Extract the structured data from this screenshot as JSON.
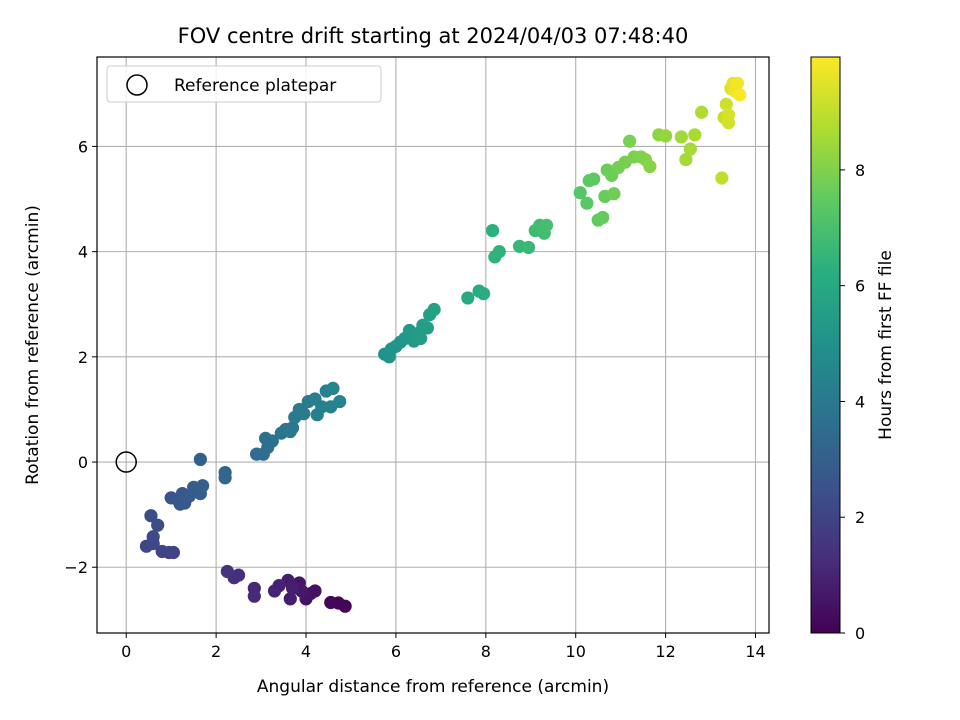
{
  "chart_data": {
    "type": "scatter",
    "title": "FOV centre drift starting at 2024/04/03 07:48:40",
    "xlabel": "Angular distance from reference (arcmin)",
    "ylabel": "Rotation from reference (arcmin)",
    "xlim": [
      -0.65,
      14.3
    ],
    "ylim": [
      -3.25,
      7.7
    ],
    "xticks": [
      0,
      2,
      4,
      6,
      8,
      10,
      12,
      14
    ],
    "yticks": [
      -2,
      0,
      2,
      4,
      6
    ],
    "grid": true,
    "colormap": "viridis",
    "colorbar": {
      "label": "Hours from first FF file",
      "range": [
        0,
        9.95
      ],
      "ticks": [
        0,
        2,
        4,
        6,
        8
      ]
    },
    "legend": {
      "placement": "top-left",
      "entries": [
        "Reference platepar"
      ]
    },
    "reference_point": {
      "x": 0,
      "y": 0
    },
    "points": [
      {
        "x": 4.87,
        "y": -2.74,
        "t": 0.05
      },
      {
        "x": 4.72,
        "y": -2.68,
        "t": 0.1
      },
      {
        "x": 4.55,
        "y": -2.67,
        "t": 0.2
      },
      {
        "x": 4.1,
        "y": -2.5,
        "t": 0.4
      },
      {
        "x": 4.2,
        "y": -2.45,
        "t": 0.45
      },
      {
        "x": 4.0,
        "y": -2.6,
        "t": 0.5
      },
      {
        "x": 3.85,
        "y": -2.3,
        "t": 0.6
      },
      {
        "x": 3.9,
        "y": -2.45,
        "t": 0.65
      },
      {
        "x": 3.6,
        "y": -2.25,
        "t": 0.75
      },
      {
        "x": 3.65,
        "y": -2.6,
        "t": 0.8
      },
      {
        "x": 3.7,
        "y": -2.4,
        "t": 0.85
      },
      {
        "x": 3.4,
        "y": -2.35,
        "t": 0.95
      },
      {
        "x": 3.3,
        "y": -2.45,
        "t": 1.0
      },
      {
        "x": 2.85,
        "y": -2.4,
        "t": 1.1
      },
      {
        "x": 2.85,
        "y": -2.55,
        "t": 1.15
      },
      {
        "x": 2.5,
        "y": -2.15,
        "t": 1.3
      },
      {
        "x": 2.4,
        "y": -2.2,
        "t": 1.35
      },
      {
        "x": 2.25,
        "y": -2.08,
        "t": 1.45
      },
      {
        "x": 0.95,
        "y": -1.72,
        "t": 1.9
      },
      {
        "x": 1.05,
        "y": -1.72,
        "t": 1.95
      },
      {
        "x": 0.8,
        "y": -1.7,
        "t": 2.0
      },
      {
        "x": 0.45,
        "y": -1.6,
        "t": 2.1
      },
      {
        "x": 0.6,
        "y": -1.55,
        "t": 2.15
      },
      {
        "x": 0.6,
        "y": -1.42,
        "t": 2.2
      },
      {
        "x": 0.7,
        "y": -1.2,
        "t": 2.3
      },
      {
        "x": 0.55,
        "y": -1.02,
        "t": 2.35
      },
      {
        "x": 1.0,
        "y": -0.68,
        "t": 2.55
      },
      {
        "x": 1.2,
        "y": -0.8,
        "t": 2.6
      },
      {
        "x": 1.15,
        "y": -0.72,
        "t": 2.65
      },
      {
        "x": 1.3,
        "y": -0.78,
        "t": 2.7
      },
      {
        "x": 1.25,
        "y": -0.6,
        "t": 2.75
      },
      {
        "x": 1.4,
        "y": -0.65,
        "t": 2.8
      },
      {
        "x": 1.5,
        "y": -0.48,
        "t": 2.85
      },
      {
        "x": 1.65,
        "y": -0.6,
        "t": 2.9
      },
      {
        "x": 1.7,
        "y": -0.45,
        "t": 2.95
      },
      {
        "x": 1.65,
        "y": 0.05,
        "t": 3.05
      },
      {
        "x": 2.2,
        "y": -0.2,
        "t": 3.2
      },
      {
        "x": 2.2,
        "y": -0.3,
        "t": 3.25
      },
      {
        "x": 2.9,
        "y": 0.15,
        "t": 3.5
      },
      {
        "x": 3.05,
        "y": 0.15,
        "t": 3.55
      },
      {
        "x": 3.15,
        "y": 0.28,
        "t": 3.6
      },
      {
        "x": 3.1,
        "y": 0.45,
        "t": 3.65
      },
      {
        "x": 3.25,
        "y": 0.4,
        "t": 3.7
      },
      {
        "x": 3.45,
        "y": 0.55,
        "t": 3.8
      },
      {
        "x": 3.55,
        "y": 0.62,
        "t": 3.85
      },
      {
        "x": 3.7,
        "y": 0.65,
        "t": 3.9
      },
      {
        "x": 3.65,
        "y": 0.58,
        "t": 3.95
      },
      {
        "x": 3.75,
        "y": 0.85,
        "t": 4.0
      },
      {
        "x": 3.85,
        "y": 1.0,
        "t": 4.05
      },
      {
        "x": 3.95,
        "y": 0.92,
        "t": 4.1
      },
      {
        "x": 4.05,
        "y": 1.15,
        "t": 4.15
      },
      {
        "x": 4.2,
        "y": 1.2,
        "t": 4.2
      },
      {
        "x": 4.25,
        "y": 0.9,
        "t": 4.25
      },
      {
        "x": 4.35,
        "y": 1.05,
        "t": 4.3
      },
      {
        "x": 4.45,
        "y": 1.35,
        "t": 4.35
      },
      {
        "x": 4.55,
        "y": 1.05,
        "t": 4.4
      },
      {
        "x": 4.6,
        "y": 1.4,
        "t": 4.45
      },
      {
        "x": 4.75,
        "y": 1.15,
        "t": 4.5
      },
      {
        "x": 5.75,
        "y": 2.05,
        "t": 5.0
      },
      {
        "x": 5.85,
        "y": 2.0,
        "t": 5.05
      },
      {
        "x": 5.9,
        "y": 2.15,
        "t": 5.1
      },
      {
        "x": 6.0,
        "y": 2.2,
        "t": 5.15
      },
      {
        "x": 6.1,
        "y": 2.28,
        "t": 5.2
      },
      {
        "x": 6.2,
        "y": 2.35,
        "t": 5.25
      },
      {
        "x": 6.3,
        "y": 2.5,
        "t": 5.3
      },
      {
        "x": 6.4,
        "y": 2.3,
        "t": 5.35
      },
      {
        "x": 6.5,
        "y": 2.45,
        "t": 5.4
      },
      {
        "x": 6.55,
        "y": 2.35,
        "t": 5.45
      },
      {
        "x": 6.6,
        "y": 2.6,
        "t": 5.5
      },
      {
        "x": 6.7,
        "y": 2.55,
        "t": 5.55
      },
      {
        "x": 6.75,
        "y": 2.8,
        "t": 5.6
      },
      {
        "x": 6.85,
        "y": 2.9,
        "t": 5.65
      },
      {
        "x": 7.6,
        "y": 3.12,
        "t": 6.0
      },
      {
        "x": 7.85,
        "y": 3.25,
        "t": 6.1
      },
      {
        "x": 7.95,
        "y": 3.2,
        "t": 6.15
      },
      {
        "x": 8.15,
        "y": 4.4,
        "t": 6.3
      },
      {
        "x": 8.2,
        "y": 3.9,
        "t": 6.35
      },
      {
        "x": 8.3,
        "y": 4.0,
        "t": 6.4
      },
      {
        "x": 8.75,
        "y": 4.1,
        "t": 6.6
      },
      {
        "x": 8.95,
        "y": 4.08,
        "t": 6.65
      },
      {
        "x": 9.1,
        "y": 4.4,
        "t": 6.75
      },
      {
        "x": 9.2,
        "y": 4.5,
        "t": 6.8
      },
      {
        "x": 9.3,
        "y": 4.35,
        "t": 6.85
      },
      {
        "x": 9.35,
        "y": 4.5,
        "t": 6.9
      },
      {
        "x": 10.1,
        "y": 5.12,
        "t": 7.3
      },
      {
        "x": 10.25,
        "y": 4.92,
        "t": 7.35
      },
      {
        "x": 10.3,
        "y": 5.35,
        "t": 7.4
      },
      {
        "x": 10.4,
        "y": 5.38,
        "t": 7.45
      },
      {
        "x": 10.5,
        "y": 4.6,
        "t": 7.5
      },
      {
        "x": 10.6,
        "y": 4.65,
        "t": 7.55
      },
      {
        "x": 10.65,
        "y": 5.05,
        "t": 7.6
      },
      {
        "x": 10.7,
        "y": 5.55,
        "t": 7.65
      },
      {
        "x": 10.8,
        "y": 5.45,
        "t": 7.7
      },
      {
        "x": 10.85,
        "y": 5.1,
        "t": 7.75
      },
      {
        "x": 10.95,
        "y": 5.6,
        "t": 7.8
      },
      {
        "x": 11.1,
        "y": 5.7,
        "t": 7.85
      },
      {
        "x": 11.2,
        "y": 6.1,
        "t": 7.9
      },
      {
        "x": 11.3,
        "y": 5.8,
        "t": 7.95
      },
      {
        "x": 11.45,
        "y": 5.8,
        "t": 8.0
      },
      {
        "x": 11.55,
        "y": 5.75,
        "t": 8.05
      },
      {
        "x": 11.65,
        "y": 5.62,
        "t": 8.1
      },
      {
        "x": 11.85,
        "y": 6.22,
        "t": 8.2
      },
      {
        "x": 12.0,
        "y": 6.2,
        "t": 8.3
      },
      {
        "x": 12.35,
        "y": 6.18,
        "t": 8.5
      },
      {
        "x": 12.45,
        "y": 5.75,
        "t": 8.55
      },
      {
        "x": 12.55,
        "y": 5.95,
        "t": 8.6
      },
      {
        "x": 12.65,
        "y": 6.22,
        "t": 8.65
      },
      {
        "x": 12.8,
        "y": 6.65,
        "t": 8.75
      },
      {
        "x": 13.25,
        "y": 5.4,
        "t": 9.0
      },
      {
        "x": 13.3,
        "y": 6.55,
        "t": 9.1
      },
      {
        "x": 13.35,
        "y": 6.8,
        "t": 9.2
      },
      {
        "x": 13.4,
        "y": 6.45,
        "t": 9.3
      },
      {
        "x": 13.4,
        "y": 6.6,
        "t": 9.35
      },
      {
        "x": 13.45,
        "y": 7.1,
        "t": 9.5
      },
      {
        "x": 13.5,
        "y": 7.2,
        "t": 9.6
      },
      {
        "x": 13.55,
        "y": 7.05,
        "t": 9.7
      },
      {
        "x": 13.6,
        "y": 7.2,
        "t": 9.8
      },
      {
        "x": 13.65,
        "y": 6.98,
        "t": 9.9
      }
    ]
  }
}
